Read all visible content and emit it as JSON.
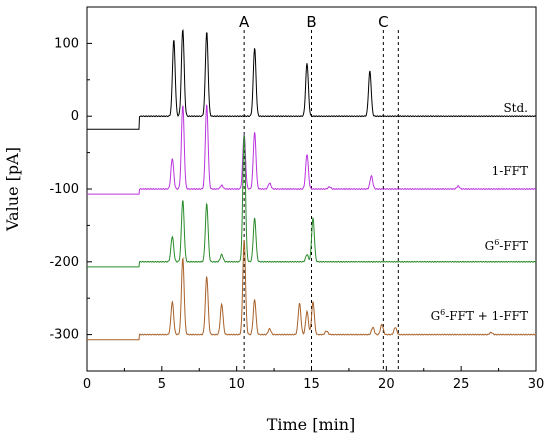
{
  "chart_data": {
    "type": "line",
    "xlabel": "Time [min]",
    "ylabel": "Value [pA]",
    "xlim": [
      0,
      30
    ],
    "ylim": [
      -350,
      150
    ],
    "x_ticks": [
      "0",
      "5",
      "10",
      "15",
      "20",
      "25",
      "30"
    ],
    "y_ticks": [
      "100",
      "0",
      "-100",
      "-200",
      "-300"
    ],
    "grid": false,
    "markers": [
      {
        "label": "A",
        "x": 10.5
      },
      {
        "label": "B",
        "x": 15.0
      },
      {
        "label": "C",
        "x": 19.8
      },
      {
        "label": "",
        "x": 20.8
      }
    ],
    "series": [
      {
        "name": "Std.",
        "name_prefix": "Std.",
        "name_sup": "",
        "name_suffix": "",
        "color": "#000000",
        "baseline_start": -18,
        "baseline": 0,
        "step_x": 3.5,
        "peaks": [
          [
            5.8,
            105
          ],
          [
            6.4,
            120
          ],
          [
            8.0,
            116
          ],
          [
            11.2,
            94
          ],
          [
            14.7,
            73
          ],
          [
            18.9,
            62
          ]
        ]
      },
      {
        "name": "1-FFT",
        "name_prefix": "1-FFT",
        "name_sup": "",
        "name_suffix": "",
        "color": "#bb33dd",
        "baseline_start": -107,
        "baseline": -100,
        "step_x": 3.5,
        "peaks": [
          [
            5.7,
            42
          ],
          [
            6.4,
            116
          ],
          [
            8.0,
            116
          ],
          [
            9.0,
            5
          ],
          [
            10.5,
            75
          ],
          [
            11.2,
            78
          ],
          [
            12.2,
            8
          ],
          [
            14.7,
            48
          ],
          [
            16.2,
            3
          ],
          [
            19.0,
            18
          ],
          [
            24.8,
            4
          ]
        ]
      },
      {
        "name": "G6-FFT",
        "name_prefix": "G",
        "name_sup": "6",
        "name_suffix": "-FFT",
        "color": "#2a8a2a",
        "baseline_start": -207,
        "baseline": -200,
        "step_x": 3.5,
        "peaks": [
          [
            5.7,
            35
          ],
          [
            6.4,
            85
          ],
          [
            8.0,
            80
          ],
          [
            9.0,
            10
          ],
          [
            10.5,
            175
          ],
          [
            11.2,
            60
          ],
          [
            14.7,
            10
          ],
          [
            15.1,
            60
          ]
        ]
      },
      {
        "name": "G6-FFT + 1-FFT",
        "name_prefix": "G",
        "name_sup": "6",
        "name_suffix": "-FFT + 1-FFT",
        "color": "#a8612a",
        "baseline_start": -307,
        "baseline": -300,
        "step_x": 3.5,
        "peaks": [
          [
            5.7,
            45
          ],
          [
            6.4,
            105
          ],
          [
            8.0,
            80
          ],
          [
            9.0,
            42
          ],
          [
            10.5,
            130
          ],
          [
            11.2,
            48
          ],
          [
            12.2,
            8
          ],
          [
            14.2,
            43
          ],
          [
            14.7,
            32
          ],
          [
            15.1,
            45
          ],
          [
            16.0,
            5
          ],
          [
            19.1,
            10
          ],
          [
            19.7,
            14
          ],
          [
            20.6,
            10
          ],
          [
            27.0,
            3
          ]
        ]
      }
    ]
  }
}
